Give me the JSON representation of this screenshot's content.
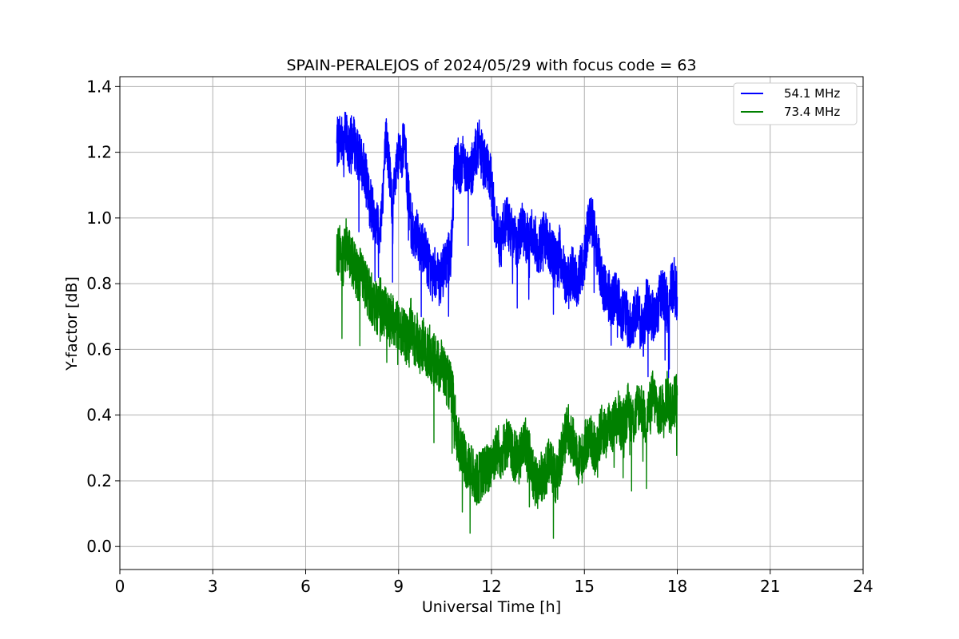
{
  "chart_data": {
    "type": "line",
    "title": "SPAIN-PERALEJOS of 2024/05/29 with focus code = 63",
    "xlabel": "Universal Time [h]",
    "ylabel": "Y-factor [dB]",
    "xlim": [
      0,
      24
    ],
    "ylim": [
      -0.07,
      1.43
    ],
    "xticks": [
      0,
      3,
      6,
      9,
      12,
      15,
      18,
      21,
      24
    ],
    "yticks": [
      0.0,
      0.2,
      0.4,
      0.6,
      0.8,
      1.0,
      1.2,
      1.4
    ],
    "xtick_labels": [
      "0",
      "3",
      "6",
      "9",
      "12",
      "15",
      "18",
      "21",
      "24"
    ],
    "ytick_labels": [
      "0.0",
      "0.2",
      "0.4",
      "0.6",
      "0.8",
      "1.0",
      "1.2",
      "1.4"
    ],
    "grid": true,
    "legend_position": "top-right",
    "series": [
      {
        "name": "54.1 MHz",
        "color": "#0000ff",
        "x": [
          7.0,
          7.1,
          7.2,
          7.3,
          7.4,
          7.5,
          7.6,
          7.7,
          7.8,
          7.9,
          8.0,
          8.1,
          8.2,
          8.3,
          8.4,
          8.5,
          8.6,
          8.7,
          8.8,
          8.9,
          9.0,
          9.1,
          9.2,
          9.3,
          9.4,
          9.5,
          9.6,
          9.7,
          9.8,
          9.9,
          10.0,
          10.1,
          10.2,
          10.3,
          10.4,
          10.5,
          10.6,
          10.7,
          10.8,
          10.9,
          11.0,
          11.1,
          11.2,
          11.3,
          11.4,
          11.5,
          11.6,
          11.7,
          11.8,
          11.9,
          12.0,
          12.1,
          12.2,
          12.3,
          12.4,
          12.5,
          12.6,
          12.7,
          12.8,
          12.9,
          13.0,
          13.1,
          13.2,
          13.3,
          13.4,
          13.5,
          13.6,
          13.7,
          13.8,
          13.9,
          14.0,
          14.1,
          14.2,
          14.3,
          14.4,
          14.5,
          14.6,
          14.7,
          14.8,
          14.9,
          15.0,
          15.1,
          15.2,
          15.3,
          15.4,
          15.5,
          15.6,
          15.7,
          15.8,
          15.9,
          16.0,
          16.1,
          16.2,
          16.3,
          16.4,
          16.5,
          16.6,
          16.7,
          16.8,
          16.9,
          17.0,
          17.1,
          17.2,
          17.3,
          17.4,
          17.5,
          17.6,
          17.7,
          17.8,
          17.9,
          18.0
        ],
        "y": [
          1.22,
          1.25,
          1.23,
          1.26,
          1.21,
          1.24,
          1.22,
          1.19,
          1.16,
          1.15,
          1.08,
          1.04,
          1.0,
          0.98,
          0.95,
          1.1,
          1.25,
          1.15,
          1.02,
          1.12,
          1.18,
          1.2,
          1.22,
          1.08,
          0.98,
          0.95,
          0.97,
          0.9,
          0.92,
          0.88,
          0.85,
          0.82,
          0.84,
          0.8,
          0.82,
          0.86,
          0.88,
          0.9,
          1.15,
          1.17,
          1.15,
          1.18,
          1.14,
          1.12,
          1.16,
          1.2,
          1.22,
          1.18,
          1.16,
          1.14,
          1.1,
          1.0,
          0.95,
          0.92,
          0.98,
          1.0,
          0.96,
          0.94,
          0.92,
          0.95,
          0.97,
          0.94,
          0.93,
          0.96,
          0.94,
          0.9,
          0.92,
          0.95,
          0.93,
          0.9,
          0.88,
          0.86,
          0.9,
          0.85,
          0.82,
          0.8,
          0.84,
          0.82,
          0.8,
          0.85,
          0.88,
          0.96,
          1.0,
          0.98,
          0.9,
          0.85,
          0.8,
          0.78,
          0.76,
          0.74,
          0.78,
          0.75,
          0.7,
          0.72,
          0.68,
          0.66,
          0.7,
          0.72,
          0.68,
          0.64,
          0.74,
          0.72,
          0.7,
          0.68,
          0.74,
          0.78,
          0.76,
          0.72,
          0.78,
          0.8,
          0.76
        ]
      },
      {
        "name": "73.4 MHz",
        "color": "#008000",
        "x": [
          7.0,
          7.1,
          7.2,
          7.3,
          7.4,
          7.5,
          7.6,
          7.7,
          7.8,
          7.9,
          8.0,
          8.1,
          8.2,
          8.3,
          8.4,
          8.5,
          8.6,
          8.7,
          8.8,
          8.9,
          9.0,
          9.1,
          9.2,
          9.3,
          9.4,
          9.5,
          9.6,
          9.7,
          9.8,
          9.9,
          10.0,
          10.1,
          10.2,
          10.3,
          10.4,
          10.5,
          10.6,
          10.7,
          10.8,
          10.9,
          11.0,
          11.1,
          11.2,
          11.3,
          11.4,
          11.5,
          11.6,
          11.7,
          11.8,
          11.9,
          12.0,
          12.1,
          12.2,
          12.3,
          12.4,
          12.5,
          12.6,
          12.7,
          12.8,
          12.9,
          13.0,
          13.1,
          13.2,
          13.3,
          13.4,
          13.5,
          13.6,
          13.7,
          13.8,
          13.9,
          14.0,
          14.1,
          14.2,
          14.3,
          14.4,
          14.5,
          14.6,
          14.7,
          14.8,
          14.9,
          15.0,
          15.1,
          15.2,
          15.3,
          15.4,
          15.5,
          15.6,
          15.7,
          15.8,
          15.9,
          16.0,
          16.1,
          16.2,
          16.3,
          16.4,
          16.5,
          16.6,
          16.7,
          16.8,
          16.9,
          17.0,
          17.1,
          17.2,
          17.3,
          17.4,
          17.5,
          17.6,
          17.7,
          17.8,
          17.9,
          18.0
        ],
        "y": [
          0.88,
          0.9,
          0.86,
          0.92,
          0.89,
          0.87,
          0.84,
          0.82,
          0.85,
          0.8,
          0.78,
          0.76,
          0.74,
          0.72,
          0.75,
          0.7,
          0.72,
          0.68,
          0.7,
          0.66,
          0.68,
          0.66,
          0.64,
          0.62,
          0.68,
          0.62,
          0.64,
          0.6,
          0.62,
          0.58,
          0.6,
          0.56,
          0.58,
          0.54,
          0.56,
          0.52,
          0.5,
          0.48,
          0.42,
          0.32,
          0.3,
          0.28,
          0.25,
          0.24,
          0.22,
          0.2,
          0.21,
          0.22,
          0.24,
          0.23,
          0.26,
          0.28,
          0.3,
          0.28,
          0.3,
          0.32,
          0.3,
          0.28,
          0.27,
          0.26,
          0.3,
          0.32,
          0.28,
          0.25,
          0.2,
          0.18,
          0.22,
          0.2,
          0.24,
          0.28,
          0.22,
          0.2,
          0.26,
          0.3,
          0.34,
          0.36,
          0.32,
          0.3,
          0.28,
          0.26,
          0.3,
          0.32,
          0.34,
          0.3,
          0.28,
          0.34,
          0.36,
          0.34,
          0.38,
          0.36,
          0.38,
          0.4,
          0.36,
          0.38,
          0.42,
          0.4,
          0.38,
          0.42,
          0.44,
          0.4,
          0.38,
          0.42,
          0.46,
          0.44,
          0.4,
          0.42,
          0.44,
          0.46,
          0.42,
          0.44,
          0.46
        ]
      }
    ]
  }
}
